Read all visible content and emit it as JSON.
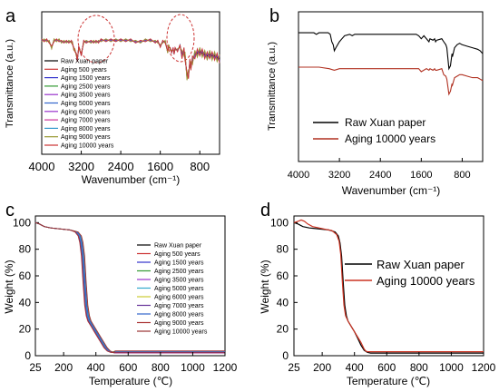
{
  "panels": [
    {
      "letter": "a",
      "chart_data": {
        "type": "line",
        "xlabel": "Wavenumber (cm⁻¹)",
        "ylabel": "Transmittance (a.u.)",
        "xlim": [
          4000,
          400
        ],
        "xticks": [
          4000,
          3200,
          2400,
          1600,
          800
        ],
        "ylim": [
          0,
          1
        ],
        "yticks": [],
        "annotations": [
          "dashed ellipse around 3400–3200 cm⁻¹",
          "dashed ellipse around 1400–1100 cm⁻¹"
        ],
        "legend": "left",
        "series": [
          {
            "name": "Raw Xuan paper",
            "color": "#000000",
            "offset": 0
          },
          {
            "name": "Aging 500 years",
            "color": "#cc3333",
            "offset": 0.003
          },
          {
            "name": "Aging 1500 years",
            "color": "#3333cc",
            "offset": -0.002
          },
          {
            "name": "Aging 2500 years",
            "color": "#339933",
            "offset": 0.005
          },
          {
            "name": "Aging 3500 years",
            "color": "#9933cc",
            "offset": -0.004
          },
          {
            "name": "Aging 5000 years",
            "color": "#3366cc",
            "offset": 0.006
          },
          {
            "name": "Aging 6000 years",
            "color": "#9933cc",
            "offset": -0.006
          },
          {
            "name": "Aging 7000 years",
            "color": "#cc3399",
            "offset": 0.008
          },
          {
            "name": "Aging 8000 years",
            "color": "#3399cc",
            "offset": -0.008
          },
          {
            "name": "Aging 9000 years",
            "color": "#999933",
            "offset": 0.01
          },
          {
            "name": "Aging 10000 years",
            "color": "#cc3333",
            "offset": -0.01
          }
        ],
        "x": [
          4000,
          3950,
          3900,
          3850,
          3800,
          3750,
          3700,
          3650,
          3600,
          3550,
          3500,
          3450,
          3400,
          3380,
          3350,
          3330,
          3300,
          3280,
          3250,
          3200,
          3150,
          3100,
          3000,
          2950,
          2900,
          2850,
          2800,
          2700,
          2600,
          2500,
          2400,
          2300,
          2200,
          2100,
          2000,
          1900,
          1800,
          1700,
          1650,
          1600,
          1550,
          1500,
          1450,
          1430,
          1400,
          1370,
          1340,
          1320,
          1300,
          1250,
          1200,
          1160,
          1120,
          1100,
          1060,
          1030,
          1000,
          980,
          950,
          900,
          850,
          800,
          750,
          700,
          650,
          600,
          550,
          500,
          450,
          400
        ],
        "y": [
          0.8,
          0.8,
          0.8,
          0.79,
          0.75,
          0.8,
          0.8,
          0.8,
          0.79,
          0.79,
          0.79,
          0.79,
          0.79,
          0.78,
          0.74,
          0.73,
          0.7,
          0.66,
          0.75,
          0.7,
          0.79,
          0.79,
          0.79,
          0.79,
          0.79,
          0.79,
          0.8,
          0.8,
          0.8,
          0.8,
          0.8,
          0.8,
          0.8,
          0.79,
          0.79,
          0.8,
          0.8,
          0.79,
          0.79,
          0.76,
          0.79,
          0.79,
          0.72,
          0.76,
          0.74,
          0.72,
          0.74,
          0.71,
          0.74,
          0.73,
          0.76,
          0.7,
          0.72,
          0.69,
          0.55,
          0.56,
          0.64,
          0.62,
          0.66,
          0.7,
          0.71,
          0.72,
          0.71,
          0.7,
          0.69,
          0.7,
          0.69,
          0.69,
          0.68,
          0.67
        ]
      }
    },
    {
      "letter": "b",
      "chart_data": {
        "type": "line",
        "xlabel": "Wavenumber (cm⁻¹)",
        "ylabel": "Transmittance (a.u.)",
        "xlim": [
          4000,
          400
        ],
        "xticks": [
          4000,
          3200,
          2400,
          1600,
          800
        ],
        "ylim": [
          0,
          1
        ],
        "yticks": [],
        "legend": "bottom-left",
        "series": [
          {
            "name": "Raw Xuan paper",
            "color": "#000000",
            "x": [
              4000,
              3800,
              3700,
              3650,
              3600,
              3500,
              3420,
              3380,
              3350,
              3320,
              3300,
              3270,
              3200,
              3150,
              3100,
              3000,
              2950,
              2900,
              2850,
              2800,
              2600,
              2400,
              2200,
              2000,
              1800,
              1700,
              1650,
              1600,
              1550,
              1450,
              1430,
              1370,
              1340,
              1320,
              1300,
              1200,
              1160,
              1120,
              1100,
              1060,
              1030,
              1000,
              990,
              950,
              900,
              850,
              800,
              700,
              600,
              500,
              450,
              400
            ],
            "y": [
              0.86,
              0.86,
              0.86,
              0.85,
              0.86,
              0.86,
              0.86,
              0.85,
              0.8,
              0.78,
              0.74,
              0.76,
              0.8,
              0.82,
              0.84,
              0.85,
              0.84,
              0.85,
              0.85,
              0.85,
              0.85,
              0.85,
              0.85,
              0.85,
              0.85,
              0.85,
              0.84,
              0.82,
              0.84,
              0.8,
              0.82,
              0.81,
              0.82,
              0.8,
              0.81,
              0.82,
              0.8,
              0.78,
              0.76,
              0.62,
              0.64,
              0.72,
              0.7,
              0.76,
              0.78,
              0.79,
              0.78,
              0.77,
              0.76,
              0.75,
              0.74,
              0.72
            ]
          },
          {
            "name": "Aging 10000 years",
            "color": "#b03020",
            "x": [
              4000,
              3800,
              3600,
              3400,
              3300,
              3200,
              3000,
              2900,
              2800,
              2600,
              2400,
              2200,
              2000,
              1800,
              1700,
              1650,
              1600,
              1500,
              1450,
              1430,
              1370,
              1340,
              1320,
              1300,
              1200,
              1160,
              1120,
              1100,
              1060,
              1030,
              1000,
              990,
              950,
              900,
              850,
              800,
              700,
              600,
              500,
              450,
              400
            ],
            "y": [
              0.63,
              0.63,
              0.63,
              0.62,
              0.61,
              0.62,
              0.62,
              0.62,
              0.62,
              0.62,
              0.62,
              0.62,
              0.62,
              0.62,
              0.62,
              0.62,
              0.6,
              0.62,
              0.61,
              0.62,
              0.61,
              0.62,
              0.61,
              0.61,
              0.62,
              0.58,
              0.57,
              0.55,
              0.45,
              0.47,
              0.52,
              0.51,
              0.56,
              0.57,
              0.58,
              0.58,
              0.57,
              0.56,
              0.56,
              0.55,
              0.54
            ]
          }
        ]
      }
    },
    {
      "letter": "c",
      "chart_data": {
        "type": "line",
        "xlabel": "Temperature (℃)",
        "ylabel": "Weight (%)",
        "xlim": [
          25,
          1200
        ],
        "xticks": [
          "25",
          "200",
          "400",
          "600",
          "800",
          "1000",
          "1200"
        ],
        "ylim": [
          0,
          105
        ],
        "yticks": [
          0,
          20,
          40,
          60,
          80,
          100
        ],
        "legend": "right",
        "series": [
          {
            "name": "Raw Xuan paper",
            "color": "#000000",
            "shift": 0,
            "final": 2
          },
          {
            "name": "Aging 500 years",
            "color": "#cc3333",
            "shift": -8,
            "final": 3
          },
          {
            "name": "Aging 1500 years",
            "color": "#3333cc",
            "shift": 2,
            "final": 2.5
          },
          {
            "name": "Aging 2500 years",
            "color": "#339933",
            "shift": -4,
            "final": 3.5
          },
          {
            "name": "Aging 3500 years",
            "color": "#9933cc",
            "shift": 5,
            "final": 2
          },
          {
            "name": "Aging 5000 years",
            "color": "#33aacc",
            "shift": -2,
            "final": 2.8
          },
          {
            "name": "Aging 6000 years",
            "color": "#cccc33",
            "shift": 8,
            "final": 3.2
          },
          {
            "name": "Aging 7000 years",
            "color": "#663399",
            "shift": -6,
            "final": 2.6
          },
          {
            "name": "Aging 8000 years",
            "color": "#3366cc",
            "shift": 4,
            "final": 3
          },
          {
            "name": "Aging 9000 years",
            "color": "#aa3333",
            "shift": -10,
            "final": 2.2
          },
          {
            "name": "Aging 10000 years",
            "color": "#993333",
            "shift": 10,
            "final": 3.6
          }
        ],
        "x": [
          25,
          50,
          80,
          120,
          160,
          200,
          240,
          280,
          300,
          310,
          320,
          330,
          340,
          350,
          360,
          380,
          400,
          420,
          440,
          460,
          480,
          500,
          520,
          600,
          800,
          1000,
          1200
        ],
        "y": [
          100,
          99,
          97,
          96,
          95.5,
          95,
          94.5,
          93,
          90,
          85,
          75,
          55,
          38,
          30,
          26,
          22,
          18,
          14,
          10,
          6,
          3.5,
          2.5,
          2.2,
          2.1,
          2,
          2,
          2
        ]
      }
    },
    {
      "letter": "d",
      "chart_data": {
        "type": "line",
        "xlabel": "Temperature (℃)",
        "ylabel": "Weight (%)",
        "xlim": [
          25,
          1200
        ],
        "xticks": [
          "25",
          "200",
          "400",
          "600",
          "800",
          "1000",
          "1200"
        ],
        "ylim": [
          0,
          105
        ],
        "yticks": [
          0,
          20,
          40,
          60,
          80,
          100
        ],
        "legend": "right",
        "series": [
          {
            "name": "Raw Xuan paper",
            "color": "#000000",
            "x": [
              25,
              50,
              80,
              120,
              160,
              200,
              240,
              280,
              300,
              310,
              320,
              330,
              340,
              350,
              360,
              380,
              400,
              420,
              440,
              460,
              480,
              500,
              600,
              800,
              1000,
              1200
            ],
            "y": [
              100,
              99,
              97,
              96,
              95.5,
              95,
              94.5,
              93,
              90,
              85,
              75,
              55,
              38,
              30,
              26,
              22,
              18,
              13,
              8,
              4,
              2.5,
              2,
              2,
              2,
              2,
              2
            ]
          },
          {
            "name": "Aging 10000 years",
            "color": "#cc3322",
            "x": [
              25,
              50,
              70,
              90,
              110,
              140,
              180,
              220,
              260,
              290,
              305,
              315,
              325,
              335,
              345,
              360,
              380,
              400,
              420,
              440,
              460,
              470,
              480,
              500,
              600,
              800,
              1000,
              1200
            ],
            "y": [
              100,
              101,
              102,
              101,
              99,
              97,
              96,
              95,
              94,
              91,
              86,
              76,
              55,
              38,
              30,
              26,
              22,
              18,
              14,
              10,
              5,
              3.5,
              3,
              3,
              3,
              3,
              3,
              3
            ]
          }
        ]
      }
    }
  ]
}
